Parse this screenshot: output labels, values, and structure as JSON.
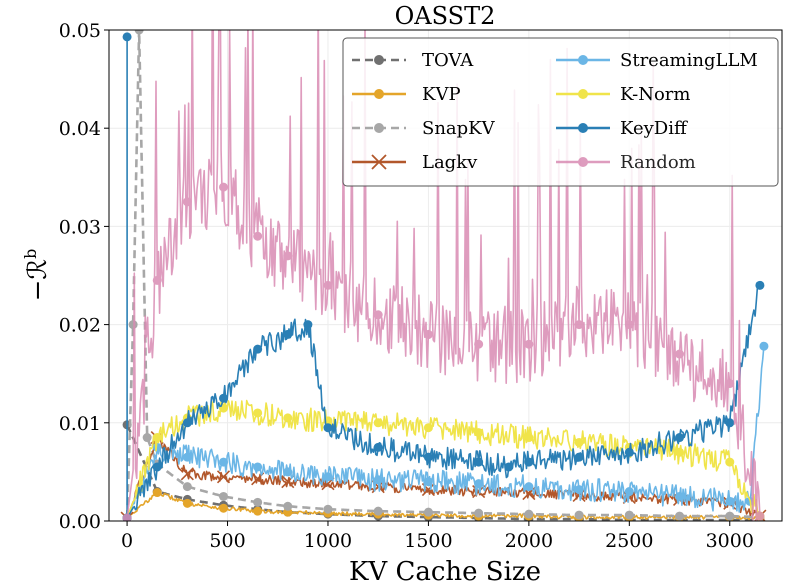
{
  "chart_data": {
    "type": "line",
    "title": "OASST2",
    "xlabel": "KV Cache Size",
    "ylabel": "−ℛ",
    "ylabel_sup": "b",
    "xlim": [
      -90,
      3260
    ],
    "ylim": [
      0,
      0.05
    ],
    "xticks": [
      0,
      500,
      1000,
      1500,
      2000,
      2500,
      3000
    ],
    "yticks": [
      0.0,
      0.01,
      0.02,
      0.03,
      0.04,
      0.05
    ],
    "ytick_labels": [
      "0.00",
      "0.01",
      "0.02",
      "0.03",
      "0.04",
      "0.05"
    ],
    "grid": true,
    "legend_position": "top-right",
    "series": [
      {
        "name": "TOVA",
        "color": "#707070",
        "dash": "8,5",
        "marker": "circle",
        "noise": 0,
        "x": [
          0,
          150,
          300,
          480,
          650,
          800,
          1000,
          1250,
          1500,
          1750,
          2000,
          2250,
          2500,
          2750,
          3000,
          3150
        ],
        "values": [
          0.0098,
          0.003,
          0.0022,
          0.0016,
          0.0012,
          0.0009,
          0.0007,
          0.0005,
          0.0004,
          0.0003,
          0.0002,
          0.0002,
          0.0001,
          0.0001,
          0.0001,
          0.0001
        ]
      },
      {
        "name": "KVP",
        "color": "#e4a52a",
        "dash": "",
        "marker": "circle",
        "noise": 0.0002,
        "x": [
          0,
          150,
          300,
          480,
          650,
          800,
          1000,
          1250,
          1500,
          1750,
          2000,
          2250,
          2500,
          2750,
          3000,
          3150
        ],
        "values": [
          0.0003,
          0.0029,
          0.0018,
          0.0013,
          0.001,
          0.0009,
          0.0008,
          0.0007,
          0.0006,
          0.0005,
          0.0005,
          0.0004,
          0.0004,
          0.0004,
          0.0004,
          0.0003
        ]
      },
      {
        "name": "SnapKV",
        "color": "#a7a7a7",
        "dash": "8,5",
        "marker": "circle",
        "noise": 0,
        "x": [
          0,
          30,
          60,
          100,
          150,
          300,
          480,
          650,
          800,
          1000,
          1250,
          1500,
          1750,
          2000,
          2250,
          2500,
          2750,
          3000,
          3150
        ],
        "values": [
          0.0003,
          0.02,
          0.05,
          0.0085,
          0.0058,
          0.0035,
          0.0025,
          0.0019,
          0.0015,
          0.0012,
          0.001,
          0.0009,
          0.0008,
          0.0007,
          0.0006,
          0.0006,
          0.0005,
          0.0005,
          0.0004
        ]
      },
      {
        "name": "Lagkv",
        "color": "#b2572b",
        "dash": "",
        "marker": "x",
        "noise": 0.0005,
        "x": [
          0,
          150,
          300,
          480,
          650,
          800,
          1000,
          1250,
          1500,
          1750,
          2000,
          2250,
          2500,
          2750,
          3000,
          3150
        ],
        "values": [
          0.0003,
          0.0085,
          0.0048,
          0.0045,
          0.0043,
          0.004,
          0.0038,
          0.0035,
          0.0032,
          0.003,
          0.0028,
          0.0026,
          0.0024,
          0.0022,
          0.0018,
          0.0005
        ]
      },
      {
        "name": "StreamingLLM",
        "color": "#6bb6e6",
        "dash": "",
        "marker": "circle",
        "noise": 0.0012,
        "x": [
          0,
          150,
          300,
          480,
          650,
          800,
          1000,
          1250,
          1500,
          1750,
          2000,
          2250,
          2500,
          2750,
          3000,
          3100,
          3170
        ],
        "values": [
          0.0003,
          0.0075,
          0.0065,
          0.006,
          0.0055,
          0.005,
          0.0045,
          0.0042,
          0.004,
          0.0038,
          0.0035,
          0.0032,
          0.003,
          0.0025,
          0.002,
          0.002,
          0.0178
        ]
      },
      {
        "name": "K-Norm",
        "color": "#f0e44a",
        "dash": "",
        "marker": "circle",
        "noise": 0.0012,
        "x": [
          0,
          150,
          300,
          480,
          650,
          800,
          1000,
          1250,
          1500,
          1750,
          2000,
          2250,
          2500,
          2750,
          3000,
          3150
        ],
        "values": [
          0.0003,
          0.0085,
          0.0105,
          0.0115,
          0.011,
          0.0105,
          0.0102,
          0.01,
          0.0095,
          0.009,
          0.0085,
          0.008,
          0.0075,
          0.007,
          0.006,
          0.0005
        ]
      },
      {
        "name": "KeyDiff",
        "color": "#2a7fb5",
        "dash": "",
        "marker": "circle",
        "noise": 0.0012,
        "x": [
          0,
          0,
          0,
          150,
          300,
          480,
          650,
          800,
          900,
          1000,
          1250,
          1500,
          1750,
          1900,
          2000,
          2250,
          2500,
          2750,
          3000,
          3150
        ],
        "values": [
          0.0003,
          0.0493,
          0.0003,
          0.0055,
          0.01,
          0.0125,
          0.0175,
          0.019,
          0.02,
          0.0095,
          0.0075,
          0.0065,
          0.006,
          0.0055,
          0.006,
          0.0065,
          0.007,
          0.0085,
          0.01,
          0.024
        ]
      },
      {
        "name": "Random",
        "color": "#d98bb3",
        "dash": "",
        "marker": "circle",
        "noise": 0.004,
        "opacity": 0.85,
        "x": [
          0,
          150,
          300,
          480,
          650,
          800,
          1000,
          1250,
          1500,
          1750,
          2000,
          2250,
          2500,
          2750,
          3000,
          3150
        ],
        "values": [
          0.0003,
          0.0245,
          0.0325,
          0.034,
          0.029,
          0.027,
          0.024,
          0.021,
          0.019,
          0.018,
          0.018,
          0.02,
          0.02,
          0.017,
          0.014,
          0.0005
        ]
      }
    ]
  }
}
